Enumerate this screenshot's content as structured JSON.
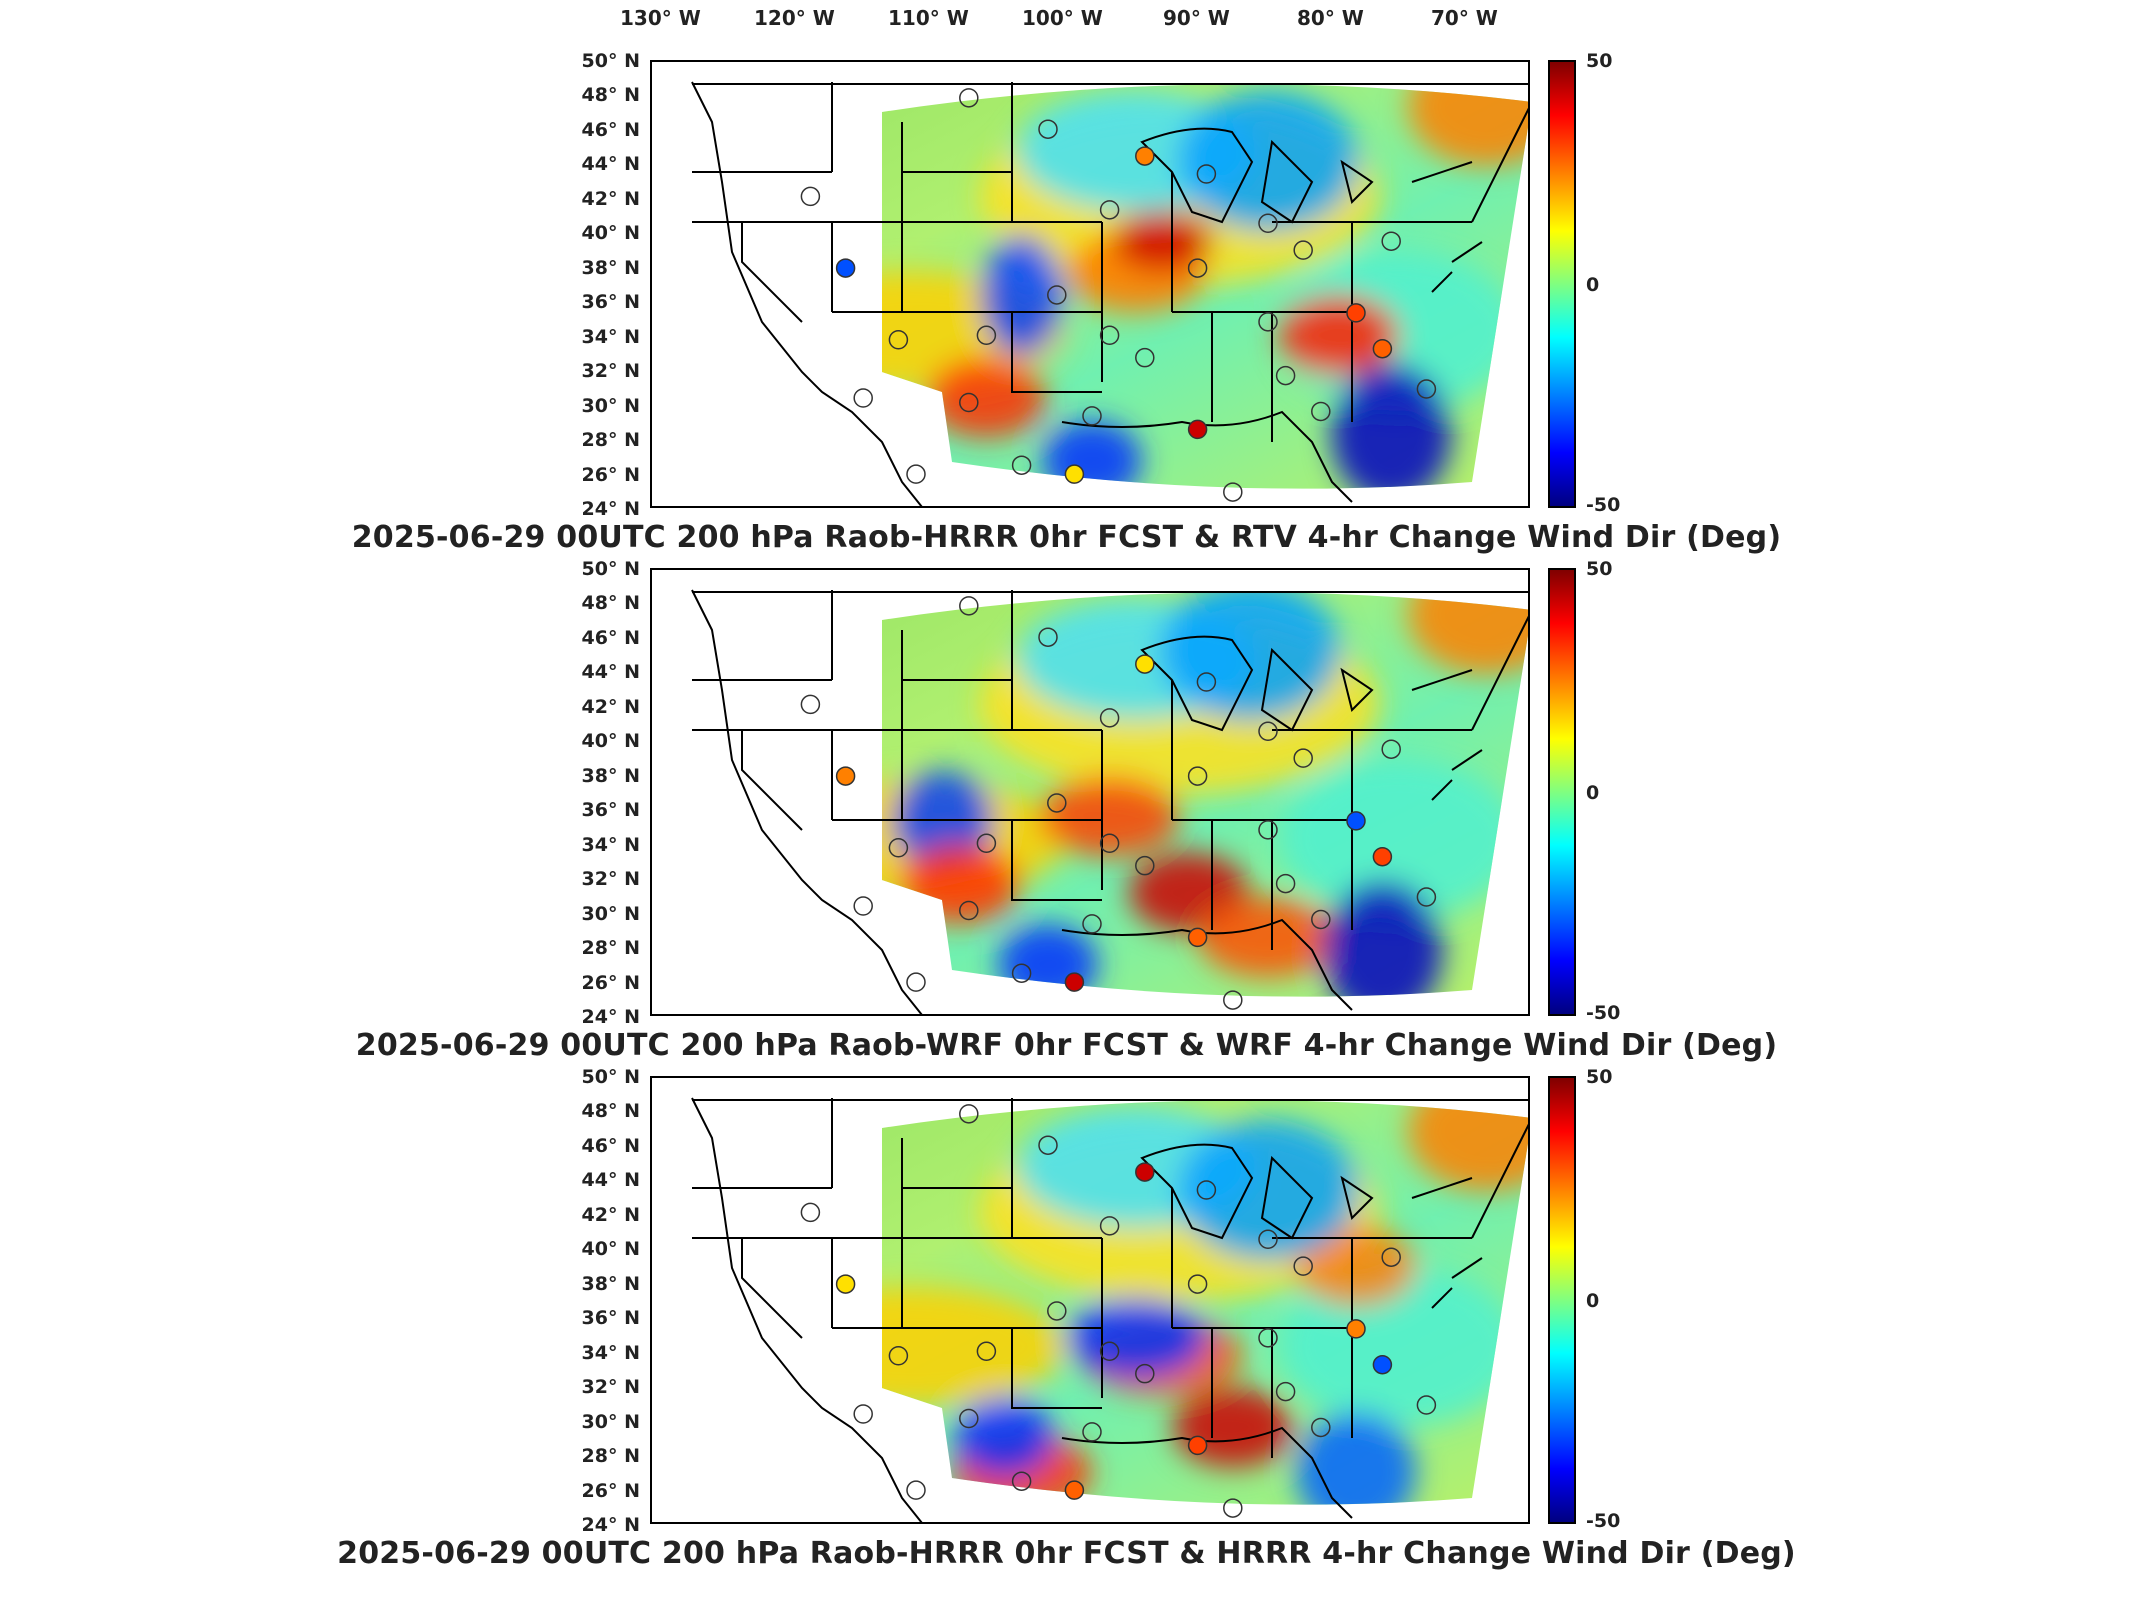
{
  "lon_labels": [
    "130° W",
    "120° W",
    "110° W",
    "100° W",
    "90° W",
    "80° W",
    "70° W"
  ],
  "lat_labels": [
    "50° N",
    "48° N",
    "46° N",
    "44° N",
    "42° N",
    "40° N",
    "38° N",
    "36° N",
    "34° N",
    "32° N",
    "30° N",
    "28° N",
    "26° N",
    "24° N"
  ],
  "colorbar": {
    "max": "50",
    "mid": "0",
    "min": "-50"
  },
  "panels": [
    {
      "title": "2025-06-29 00UTC 200 hPa Raob-HRRR 0hr FCST & RTV 4-hr Change Wind Dir (Deg)"
    },
    {
      "title": "2025-06-29 00UTC 200 hPa Raob-WRF 0hr FCST & WRF 4-hr Change Wind Dir (Deg)"
    },
    {
      "title": "2025-06-29 00UTC 200 hPa Raob-HRRR 0hr FCST & HRRR 4-hr Change Wind Dir (Deg)"
    }
  ],
  "colors": {
    "high": "#800000",
    "low": "#000080",
    "zero": "#80ff80"
  }
}
